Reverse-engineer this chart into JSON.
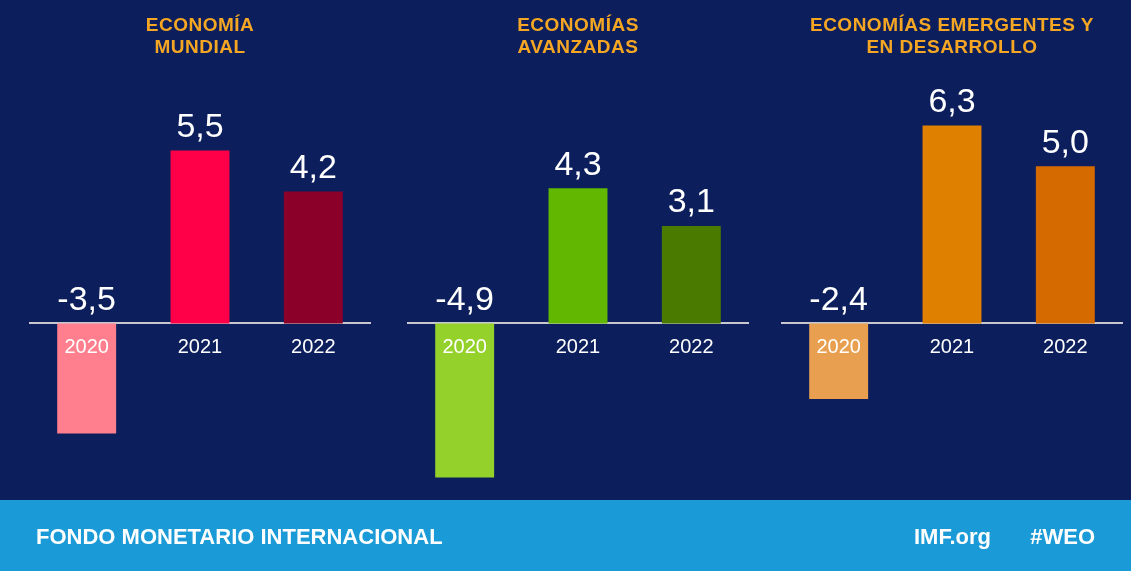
{
  "chart_data": [
    {
      "type": "bar",
      "title": "ECONOMÍA MUNDIAL",
      "categories": [
        "2020",
        "2021",
        "2022"
      ],
      "values": [
        -3.5,
        5.5,
        4.2
      ],
      "colors": [
        "#ff7f8e",
        "#ff0048",
        "#8b0029"
      ],
      "value_labels": [
        "-3,5",
        "5,5",
        "4,2"
      ],
      "grid": false,
      "legend": false,
      "tick_labels": "x"
    },
    {
      "type": "bar",
      "title": "ECONOMÍAS AVANZADAS",
      "categories": [
        "2020",
        "2021",
        "2022"
      ],
      "values": [
        -4.9,
        4.3,
        3.1
      ],
      "colors": [
        "#94d12b",
        "#62b800",
        "#4a7a00"
      ],
      "value_labels": [
        "-4,9",
        "4,3",
        "3,1"
      ],
      "grid": false,
      "legend": false,
      "tick_labels": "x"
    },
    {
      "type": "bar",
      "title": "ECONOMÍAS EMERGENTES Y EN DESARROLLO",
      "categories": [
        "2020",
        "2021",
        "2022"
      ],
      "values": [
        -2.4,
        6.3,
        5.0
      ],
      "colors": [
        "#e8a050",
        "#e08000",
        "#d46a00"
      ],
      "value_labels": [
        "-2,4",
        "6,3",
        "5,0"
      ],
      "grid": false,
      "legend": false,
      "tick_labels": "x"
    },
    {
      "type": "other",
      "annotations": [
        "FONDO MONETARIO INTERNACIONAL",
        "IMF.org",
        "#WEO"
      ]
    }
  ]
}
